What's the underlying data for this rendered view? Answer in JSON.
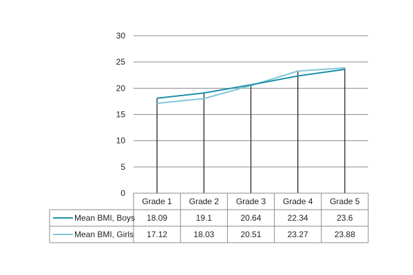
{
  "chart_data": {
    "type": "line",
    "categories": [
      "Grade 1",
      "Grade 2",
      "Grade 3",
      "Grade 4",
      "Grade 5"
    ],
    "series": [
      {
        "name": "Mean BMI, Boys",
        "values": [
          18.09,
          19.1,
          20.64,
          22.34,
          23.6
        ],
        "color": "#1a8fa8"
      },
      {
        "name": "Mean BMI, Girls",
        "values": [
          17.12,
          18.03,
          20.51,
          23.27,
          23.88
        ],
        "color": "#7fc6d8"
      }
    ],
    "value_labels": {
      "Mean BMI, Boys": [
        "18.09",
        "19.1",
        "20.64",
        "22.34",
        "23.6"
      ],
      "Mean BMI, Girls": [
        "17.12",
        "18.03",
        "20.51",
        "23.27",
        "23.88"
      ]
    },
    "ylim": [
      0,
      30
    ],
    "yticks": [
      "0",
      "5",
      "10",
      "15",
      "20",
      "25",
      "30"
    ],
    "grid": true,
    "legend": "data table below chart",
    "title": "",
    "xlabel": "",
    "ylabel": ""
  }
}
